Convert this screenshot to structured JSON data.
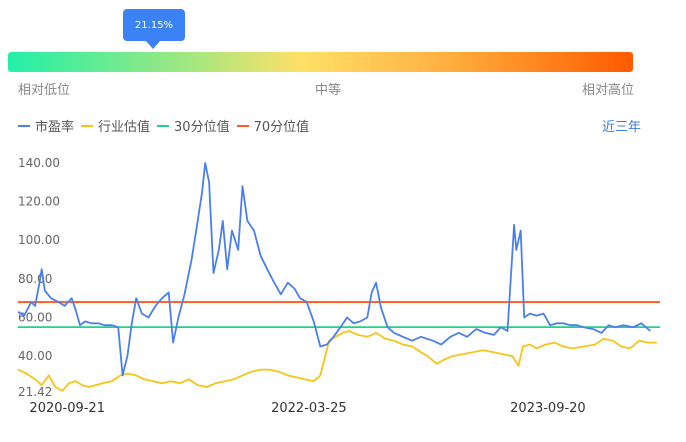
{
  "gauge": {
    "percentile_label": "21.15%",
    "percentile": 21.15,
    "low_label": "相对低位",
    "mid_label": "中等",
    "high_label": "相对高位"
  },
  "period_label": "近三年",
  "colors": {
    "pe": "#4a7ff0",
    "industry": "#f5c518",
    "p30": "#1fd38a",
    "p70": "#ff5a1f",
    "tooltip": "#3b82f6"
  },
  "chart_data": {
    "type": "line",
    "x_ticks": [
      "2020-09-21",
      "2022-03-25",
      "2023-09-20"
    ],
    "y_ticks": [
      "140.00",
      "120.00",
      "100.00",
      "80.00",
      "60.00",
      "40.00",
      "21.42"
    ],
    "ylim": [
      21.42,
      140
    ],
    "xlim": [
      "2020-06-01",
      "2024-06-01"
    ],
    "legend_position": "top-left",
    "grid": false,
    "series": [
      {
        "name": "市盈率",
        "color": "#4a7ff0",
        "points": [
          [
            "2020-06-01",
            63
          ],
          [
            "2020-06-15",
            61
          ],
          [
            "2020-07-01",
            68
          ],
          [
            "2020-07-10",
            66
          ],
          [
            "2020-07-20",
            78
          ],
          [
            "2020-07-25",
            85
          ],
          [
            "2020-08-01",
            74
          ],
          [
            "2020-08-15",
            70
          ],
          [
            "2020-09-01",
            68
          ],
          [
            "2020-09-15",
            66
          ],
          [
            "2020-10-01",
            70
          ],
          [
            "2020-10-10",
            64
          ],
          [
            "2020-10-20",
            56
          ],
          [
            "2020-11-01",
            58
          ],
          [
            "2020-11-15",
            57
          ],
          [
            "2020-12-01",
            57
          ],
          [
            "2020-12-15",
            56
          ],
          [
            "2021-01-01",
            56
          ],
          [
            "2021-01-15",
            55
          ],
          [
            "2021-01-25",
            30
          ],
          [
            "2021-02-05",
            40
          ],
          [
            "2021-02-15",
            57
          ],
          [
            "2021-02-25",
            70
          ],
          [
            "2021-03-10",
            62
          ],
          [
            "2021-03-25",
            60
          ],
          [
            "2021-04-10",
            66
          ],
          [
            "2021-04-25",
            70
          ],
          [
            "2021-05-10",
            73
          ],
          [
            "2021-05-20",
            47
          ],
          [
            "2021-06-01",
            60
          ],
          [
            "2021-06-15",
            72
          ],
          [
            "2021-07-01",
            90
          ],
          [
            "2021-07-15",
            110
          ],
          [
            "2021-07-25",
            125
          ],
          [
            "2021-08-01",
            140
          ],
          [
            "2021-08-10",
            130
          ],
          [
            "2021-08-20",
            83
          ],
          [
            "2021-09-01",
            95
          ],
          [
            "2021-09-10",
            110
          ],
          [
            "2021-09-20",
            85
          ],
          [
            "2021-10-01",
            105
          ],
          [
            "2021-10-15",
            95
          ],
          [
            "2021-10-25",
            128
          ],
          [
            "2021-11-05",
            110
          ],
          [
            "2021-11-20",
            105
          ],
          [
            "2021-12-05",
            92
          ],
          [
            "2021-12-20",
            85
          ],
          [
            "2022-01-05",
            78
          ],
          [
            "2022-01-20",
            72
          ],
          [
            "2022-02-05",
            78
          ],
          [
            "2022-02-20",
            75
          ],
          [
            "2022-03-05",
            70
          ],
          [
            "2022-03-20",
            68
          ],
          [
            "2022-04-05",
            58
          ],
          [
            "2022-04-20",
            45
          ],
          [
            "2022-05-05",
            46
          ],
          [
            "2022-05-20",
            50
          ],
          [
            "2022-06-05",
            55
          ],
          [
            "2022-06-20",
            60
          ],
          [
            "2022-07-05",
            57
          ],
          [
            "2022-07-20",
            58
          ],
          [
            "2022-08-05",
            60
          ],
          [
            "2022-08-15",
            73
          ],
          [
            "2022-08-25",
            78
          ],
          [
            "2022-09-05",
            65
          ],
          [
            "2022-09-20",
            55
          ],
          [
            "2022-10-05",
            52
          ],
          [
            "2022-10-25",
            50
          ],
          [
            "2022-11-15",
            48
          ],
          [
            "2022-12-05",
            50
          ],
          [
            "2023-01-01",
            48
          ],
          [
            "2023-01-20",
            46
          ],
          [
            "2023-02-10",
            50
          ],
          [
            "2023-03-01",
            52
          ],
          [
            "2023-03-20",
            50
          ],
          [
            "2023-04-10",
            54
          ],
          [
            "2023-05-01",
            52
          ],
          [
            "2023-05-20",
            51
          ],
          [
            "2023-06-05",
            55
          ],
          [
            "2023-06-20",
            53
          ],
          [
            "2023-07-05",
            108
          ],
          [
            "2023-07-10",
            95
          ],
          [
            "2023-07-20",
            105
          ],
          [
            "2023-07-28",
            60
          ],
          [
            "2023-08-10",
            62
          ],
          [
            "2023-08-25",
            61
          ],
          [
            "2023-09-10",
            62
          ],
          [
            "2023-09-25",
            56
          ],
          [
            "2023-10-10",
            57
          ],
          [
            "2023-10-25",
            57
          ],
          [
            "2023-11-10",
            56
          ],
          [
            "2023-11-25",
            56
          ],
          [
            "2023-12-10",
            55
          ],
          [
            "2024-01-01",
            54
          ],
          [
            "2024-01-20",
            52
          ],
          [
            "2024-02-05",
            56
          ],
          [
            "2024-02-20",
            55
          ],
          [
            "2024-03-10",
            56
          ],
          [
            "2024-04-01",
            55
          ],
          [
            "2024-04-20",
            57
          ],
          [
            "2024-05-10",
            53
          ]
        ]
      },
      {
        "name": "行业估值",
        "color": "#f5c518",
        "points": [
          [
            "2020-06-01",
            33
          ],
          [
            "2020-06-20",
            31
          ],
          [
            "2020-07-10",
            28
          ],
          [
            "2020-07-25",
            25
          ],
          [
            "2020-08-10",
            30
          ],
          [
            "2020-08-25",
            24
          ],
          [
            "2020-09-10",
            22
          ],
          [
            "2020-09-25",
            26
          ],
          [
            "2020-10-10",
            27
          ],
          [
            "2020-10-25",
            25
          ],
          [
            "2020-11-10",
            24
          ],
          [
            "2020-11-25",
            25
          ],
          [
            "2020-12-10",
            26
          ],
          [
            "2021-01-01",
            27
          ],
          [
            "2021-01-20",
            30
          ],
          [
            "2021-02-05",
            31
          ],
          [
            "2021-02-25",
            30
          ],
          [
            "2021-03-15",
            28
          ],
          [
            "2021-04-05",
            27
          ],
          [
            "2021-04-25",
            26
          ],
          [
            "2021-05-15",
            27
          ],
          [
            "2021-06-05",
            26
          ],
          [
            "2021-06-25",
            28
          ],
          [
            "2021-07-15",
            25
          ],
          [
            "2021-08-05",
            24
          ],
          [
            "2021-08-25",
            26
          ],
          [
            "2021-09-15",
            27
          ],
          [
            "2021-10-05",
            28
          ],
          [
            "2021-10-25",
            30
          ],
          [
            "2021-11-15",
            32
          ],
          [
            "2021-12-05",
            33
          ],
          [
            "2021-12-25",
            33
          ],
          [
            "2022-01-15",
            32
          ],
          [
            "2022-02-05",
            30
          ],
          [
            "2022-02-25",
            29
          ],
          [
            "2022-03-15",
            28
          ],
          [
            "2022-04-05",
            27
          ],
          [
            "2022-04-20",
            30
          ],
          [
            "2022-05-01",
            40
          ],
          [
            "2022-05-10",
            48
          ],
          [
            "2022-05-25",
            50
          ],
          [
            "2022-06-10",
            52
          ],
          [
            "2022-06-25",
            53
          ],
          [
            "2022-07-15",
            51
          ],
          [
            "2022-08-05",
            50
          ],
          [
            "2022-08-25",
            52
          ],
          [
            "2022-09-15",
            49
          ],
          [
            "2022-10-05",
            48
          ],
          [
            "2022-10-25",
            46
          ],
          [
            "2022-11-15",
            45
          ],
          [
            "2022-12-05",
            42
          ],
          [
            "2022-12-20",
            40
          ],
          [
            "2023-01-10",
            36
          ],
          [
            "2023-01-25",
            38
          ],
          [
            "2023-02-15",
            40
          ],
          [
            "2023-03-10",
            41
          ],
          [
            "2023-04-01",
            42
          ],
          [
            "2023-04-25",
            43
          ],
          [
            "2023-05-20",
            42
          ],
          [
            "2023-06-10",
            41
          ],
          [
            "2023-07-01",
            40
          ],
          [
            "2023-07-15",
            35
          ],
          [
            "2023-07-25",
            45
          ],
          [
            "2023-08-10",
            46
          ],
          [
            "2023-08-25",
            44
          ],
          [
            "2023-09-15",
            46
          ],
          [
            "2023-10-05",
            47
          ],
          [
            "2023-10-25",
            45
          ],
          [
            "2023-11-15",
            44
          ],
          [
            "2023-12-10",
            45
          ],
          [
            "2024-01-05",
            46
          ],
          [
            "2024-01-25",
            49
          ],
          [
            "2024-02-15",
            48
          ],
          [
            "2024-03-05",
            45
          ],
          [
            "2024-03-25",
            44
          ],
          [
            "2024-04-15",
            48
          ],
          [
            "2024-05-05",
            47
          ],
          [
            "2024-05-25",
            47
          ]
        ]
      },
      {
        "name": "30分位值",
        "color": "#1fd38a",
        "value": 55
      },
      {
        "name": "70分位值",
        "color": "#ff5a1f",
        "value": 68
      }
    ]
  }
}
